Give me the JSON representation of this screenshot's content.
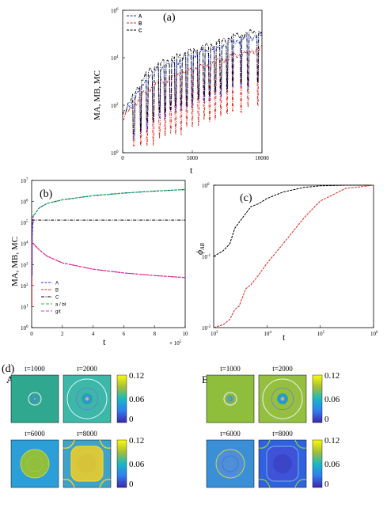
{
  "panel_labels": {
    "a": "(a)",
    "b": "(b)",
    "c": "(c)",
    "d": "(d)"
  },
  "colors": {
    "A": "#1c33d6",
    "B": "#e0201a",
    "C": "#000000",
    "fit_a": "#19c42b",
    "fit_g": "#d436d8"
  },
  "chart_data": [
    {
      "id": "a",
      "type": "line",
      "xlabel": "t",
      "ylabel": "MA, MB, MC",
      "xlim": [
        0,
        10000
      ],
      "ylim": [
        1,
        1000000
      ],
      "yscale": "log",
      "xticks": [
        "0",
        "5000",
        "10000"
      ],
      "yticks_exp": [
        "0",
        "2",
        "4",
        "6"
      ],
      "legend": [
        "A",
        "B",
        "C"
      ],
      "legend_position": "top-left",
      "spike_times": [
        800,
        1300,
        1750,
        2200,
        2650,
        3050,
        3450,
        3800,
        4200,
        4600,
        5000,
        5450,
        5850,
        6250,
        6650,
        7050,
        7500,
        7900,
        8500,
        9000,
        9700
      ],
      "series": [
        {
          "name": "A",
          "x": [
            0,
            500,
            1000,
            2000,
            3000,
            4000,
            5000,
            6000,
            7000,
            8000,
            9000,
            10000
          ],
          "y": [
            40,
            90,
            300,
            2000,
            4500,
            8000,
            13000,
            20000,
            30000,
            50000,
            70000,
            90000
          ]
        },
        {
          "name": "B",
          "x": [
            0,
            500,
            1000,
            2000,
            3000,
            4000,
            5000,
            6000,
            7000,
            8000,
            9000,
            10000
          ],
          "y": [
            30,
            60,
            150,
            600,
            1200,
            2000,
            3500,
            5000,
            8000,
            12000,
            18000,
            25000
          ]
        },
        {
          "name": "C",
          "x": [
            0,
            500,
            1000,
            2000,
            3000,
            4000,
            5000,
            6000,
            7000,
            8000,
            9000,
            10000
          ],
          "y": [
            50,
            120,
            500,
            3500,
            7000,
            12000,
            20000,
            30000,
            50000,
            80000,
            110000,
            130000
          ]
        }
      ]
    },
    {
      "id": "b",
      "type": "line",
      "xlabel": "t",
      "ylabel": "MA, MB, MC",
      "xlim": [
        0,
        1000000
      ],
      "ylim": [
        1,
        10000000
      ],
      "yscale": "log",
      "xticks": [
        "0",
        "2",
        "4",
        "6",
        "8",
        "10"
      ],
      "x_multiplier": "× 10",
      "x_multiplier_exp": "5",
      "yticks_exp": [
        "0",
        "1",
        "2",
        "3",
        "4",
        "5",
        "6",
        "7"
      ],
      "legend": [
        "A",
        "B",
        "C",
        "a / bt",
        "g/t"
      ],
      "legend_position": "bottom-left",
      "series": [
        {
          "name": "A",
          "x": [
            1000,
            10000,
            50000,
            100000,
            200000,
            400000,
            600000,
            800000,
            1000000
          ],
          "y": [
            10000,
            200000,
            500000,
            800000,
            1200000,
            1900000,
            2500000,
            3100000,
            3700000
          ]
        },
        {
          "name": "B",
          "x": [
            1000,
            10000,
            50000,
            100000,
            200000,
            400000,
            600000,
            800000,
            1000000
          ],
          "y": [
            15000,
            10000,
            5000,
            2500,
            1200,
            600,
            400,
            300,
            240
          ]
        },
        {
          "name": "C",
          "x": [
            1000,
            1000000
          ],
          "y": [
            130000,
            130000
          ]
        },
        {
          "name": "a / bt",
          "x": [
            10000,
            50000,
            100000,
            200000,
            400000,
            600000,
            800000,
            1000000
          ],
          "y": [
            200000,
            500000,
            800000,
            1200000,
            1900000,
            2500000,
            3100000,
            3700000
          ]
        },
        {
          "name": "g/t",
          "x": [
            10000,
            50000,
            100000,
            200000,
            400000,
            600000,
            800000,
            1000000
          ],
          "y": [
            10000,
            5000,
            2500,
            1200,
            600,
            400,
            300,
            240
          ]
        }
      ]
    },
    {
      "id": "c",
      "type": "line",
      "xlabel": "t",
      "ylabel": "ϕ_AB",
      "xscale": "log",
      "yscale": "log",
      "xlim": [
        1000,
        1000000
      ],
      "ylim": [
        0.01,
        1
      ],
      "xticks_exp": [
        "3",
        "4",
        "5",
        "6"
      ],
      "yticks": [
        "10",
        "10",
        "10"
      ],
      "yticks_exp": [
        "-2",
        "-1",
        "0"
      ],
      "series": [
        {
          "name": "black",
          "x": [
            1000,
            1500,
            2000,
            2500,
            3000,
            4000,
            5000,
            7000,
            10000,
            20000,
            50000,
            100000,
            300000,
            1000000
          ],
          "y": [
            0.1,
            0.12,
            0.15,
            0.25,
            0.3,
            0.4,
            0.5,
            0.55,
            0.65,
            0.8,
            0.93,
            0.98,
            1.0,
            1.0
          ]
        },
        {
          "name": "red",
          "x": [
            1000,
            1500,
            2000,
            2500,
            3000,
            4000,
            5000,
            7000,
            10000,
            20000,
            50000,
            100000,
            300000,
            1000000
          ],
          "y": [
            0.01,
            0.011,
            0.013,
            0.018,
            0.02,
            0.035,
            0.04,
            0.055,
            0.08,
            0.15,
            0.35,
            0.6,
            0.9,
            1.0
          ]
        }
      ]
    },
    {
      "id": "d",
      "type": "heatmap",
      "groups": [
        {
          "label": "A",
          "tiles": [
            "t=1000",
            "t=2000",
            "t=6000",
            "t=8000"
          ]
        },
        {
          "label": "B",
          "tiles": [
            "t=1000",
            "t=2000",
            "t=6000",
            "t=8000"
          ]
        }
      ],
      "colorbar_ticks": [
        "0.12",
        "0.06",
        "0"
      ],
      "clim": [
        0,
        0.12
      ]
    }
  ]
}
